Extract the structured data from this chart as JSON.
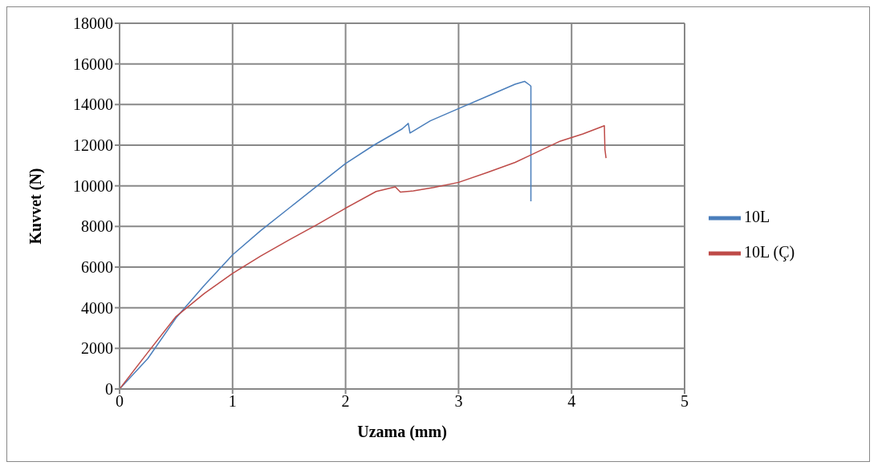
{
  "chart_data": {
    "type": "line",
    "xlabel": "Uzama (mm)",
    "ylabel": "Kuvvet (N)",
    "xlim": [
      0,
      5
    ],
    "xticks": [
      0,
      1,
      2,
      3,
      4,
      5
    ],
    "ylim": [
      0,
      18000
    ],
    "yticks": [
      0,
      2000,
      4000,
      6000,
      8000,
      10000,
      12000,
      14000,
      16000,
      18000
    ],
    "grid": true,
    "legend": "right",
    "marker": "none",
    "line_style": "solid",
    "series": [
      {
        "name": "10L",
        "color": "#4a7ebb",
        "x": [
          0,
          0.25,
          0.5,
          0.75,
          1,
          1.25,
          1.5,
          1.75,
          2,
          2.25,
          2.5,
          2.555,
          2.57,
          2.75,
          3,
          3.25,
          3.5,
          3.584,
          3.631,
          3.64,
          3.64
        ],
        "values": [
          0,
          1500,
          3500,
          5100,
          6600,
          7800,
          8900,
          10000,
          11100,
          12000,
          12800,
          13070,
          12600,
          13200,
          13800,
          14400,
          15000,
          15140,
          14950,
          14900,
          9240
        ]
      },
      {
        "name": "10L (Ç)",
        "color": "#be4b48",
        "x": [
          0,
          0.25,
          0.5,
          0.75,
          1,
          1.25,
          1.5,
          1.75,
          2,
          2.27,
          2.44,
          2.485,
          2.6,
          2.78,
          3,
          3.25,
          3.5,
          3.63,
          3.9,
          4.1,
          4.29,
          4.295,
          4.305
        ],
        "values": [
          0,
          1800,
          3570,
          4700,
          5690,
          6550,
          7340,
          8100,
          8900,
          9720,
          9950,
          9690,
          9750,
          9920,
          10170,
          10650,
          11150,
          11490,
          12200,
          12550,
          12960,
          11800,
          11360
        ]
      }
    ]
  }
}
